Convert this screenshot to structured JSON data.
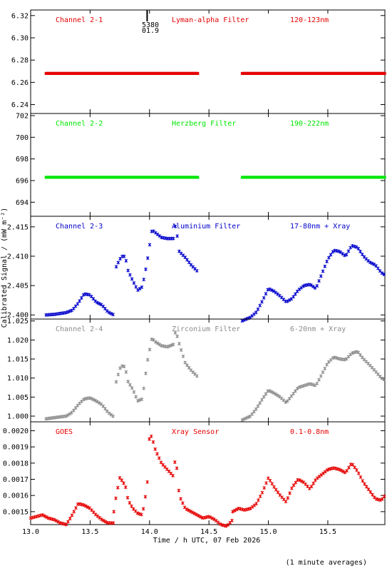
{
  "figure": {
    "ylabel": "Calibrated Signal / (mW m⁻²)",
    "xlabel": "Time / h UTC, 07 Feb 2026",
    "footnote": "(1 minute averages)",
    "marker": {
      "label_top": "5380",
      "label_bottom": "01.9",
      "x": 13.98
    },
    "x_ticks": [
      "13.0",
      "13.5",
      "14.0",
      "14.5",
      "15.0",
      "15.5"
    ],
    "x_tick_values": [
      13.0,
      13.5,
      14.0,
      14.5,
      15.0,
      15.5
    ],
    "xlim": [
      13.0,
      15.98
    ],
    "axis_color": "#000000"
  },
  "chart_data": [
    {
      "type": "scatter",
      "channel": "Channel 2-1",
      "filter": "Lyman-alpha Filter",
      "band": "120-123nm",
      "color": "#e60000",
      "ylim": [
        6.232,
        6.325
      ],
      "y_ticks": [
        "6.24",
        "6.26",
        "6.28",
        "6.30",
        "6.32"
      ],
      "y_tick_values": [
        6.24,
        6.26,
        6.28,
        6.3,
        6.32
      ],
      "dense": true,
      "segments": [
        {
          "x": [
            13.13,
            14.41
          ],
          "y": [
            6.268,
            6.268
          ]
        },
        {
          "x": [
            14.78,
            15.98
          ],
          "y": [
            6.268,
            6.268
          ]
        }
      ]
    },
    {
      "type": "scatter",
      "channel": "Channel 2-2",
      "filter": "Herzberg Filter",
      "band": "190-222nm",
      "color": "#00e600",
      "ylim": [
        692.7,
        702.2
      ],
      "y_ticks": [
        "694",
        "696",
        "698",
        "700",
        "702"
      ],
      "y_tick_values": [
        694,
        696,
        698,
        700,
        702
      ],
      "dense": true,
      "segments": [
        {
          "x": [
            13.13,
            14.41
          ],
          "y": [
            696.3,
            696.3
          ]
        },
        {
          "x": [
            14.78,
            15.98
          ],
          "y": [
            696.3,
            696.3
          ]
        }
      ]
    },
    {
      "type": "scatter",
      "channel": "Channel 2-3",
      "filter": "Aluminium Filter",
      "band": "17-80nm + Xray",
      "color": "#0000cc",
      "ylim": [
        2.3993,
        2.4168
      ],
      "y_ticks": [
        "2.400",
        "2.405",
        "2.410",
        "2.415"
      ],
      "y_tick_values": [
        2.4,
        2.405,
        2.41,
        2.415
      ],
      "dense": false,
      "segments": [
        {
          "x": [
            13.13,
            13.2,
            13.3,
            13.35,
            13.4,
            13.45,
            13.5,
            13.55,
            13.6,
            13.65,
            13.7
          ],
          "y": [
            2.4,
            2.4001,
            2.4004,
            2.4008,
            2.402,
            2.4036,
            2.4034,
            2.4022,
            2.4017,
            2.4005,
            2.4
          ]
        },
        {
          "x": [
            13.72,
            13.75,
            13.78,
            13.8,
            13.82,
            13.86,
            13.9,
            13.94,
            13.98,
            14.02,
            14.05,
            14.1,
            14.15,
            14.2,
            14.22,
            14.25,
            14.3,
            14.35,
            14.4
          ],
          "y": [
            2.4082,
            2.4095,
            2.4102,
            2.4095,
            2.4075,
            2.4058,
            2.4042,
            2.4048,
            2.409,
            2.4145,
            2.414,
            2.4132,
            2.413,
            2.413,
            2.4155,
            2.4108,
            2.4098,
            2.4085,
            2.4075
          ]
        },
        {
          "x": [
            14.78,
            14.85,
            14.9,
            14.95,
            15.0,
            15.05,
            15.1,
            15.15,
            15.2,
            15.25,
            15.3,
            15.35,
            15.4,
            15.45,
            15.5,
            15.55,
            15.6,
            15.65,
            15.7,
            15.75,
            15.8,
            15.85,
            15.9,
            15.95,
            15.98
          ],
          "y": [
            2.399,
            2.3996,
            2.4005,
            2.4024,
            2.4045,
            2.404,
            2.4032,
            2.4022,
            2.4028,
            2.4042,
            2.405,
            2.4052,
            2.4045,
            2.407,
            2.4095,
            2.411,
            2.4108,
            2.41,
            2.4118,
            2.4115,
            2.41,
            2.409,
            2.4085,
            2.4072,
            2.4068
          ]
        }
      ]
    },
    {
      "type": "scatter",
      "channel": "Channel 2-4",
      "filter": "Zirconium Filter",
      "band": "6-20nm + Xray",
      "color": "#8c8c8c",
      "ylim": [
        0.9985,
        1.0255
      ],
      "y_ticks": [
        "1.000",
        "1.005",
        "1.010",
        "1.015",
        "1.020",
        "1.025"
      ],
      "y_tick_values": [
        1.0,
        1.005,
        1.01,
        1.015,
        1.02,
        1.025
      ],
      "dense": false,
      "segments": [
        {
          "x": [
            13.13,
            13.2,
            13.3,
            13.35,
            13.4,
            13.45,
            13.5,
            13.55,
            13.6,
            13.65,
            13.7
          ],
          "y": [
            0.9993,
            0.9996,
            1.0,
            1.001,
            1.003,
            1.0045,
            1.0048,
            1.004,
            1.003,
            1.001,
            0.9998
          ]
        },
        {
          "x": [
            13.72,
            13.75,
            13.78,
            13.8,
            13.82,
            13.86,
            13.9,
            13.94,
            13.98,
            14.02,
            14.05,
            14.1,
            14.15,
            14.2,
            14.22,
            14.25,
            14.3,
            14.35,
            14.4
          ],
          "y": [
            1.009,
            1.0125,
            1.0135,
            1.012,
            1.009,
            1.007,
            1.004,
            1.0045,
            1.014,
            1.0205,
            1.0195,
            1.0185,
            1.0182,
            1.0188,
            1.0225,
            1.019,
            1.014,
            1.012,
            1.0105
          ]
        },
        {
          "x": [
            14.78,
            14.85,
            14.9,
            14.95,
            15.0,
            15.05,
            15.1,
            15.15,
            15.2,
            15.25,
            15.3,
            15.35,
            15.4,
            15.45,
            15.5,
            15.55,
            15.6,
            15.65,
            15.7,
            15.75,
            15.8,
            15.85,
            15.9,
            15.95,
            15.98
          ],
          "y": [
            0.999,
            1.0,
            1.002,
            1.0045,
            1.0068,
            1.006,
            1.005,
            1.0035,
            1.0055,
            1.0075,
            1.008,
            1.0085,
            1.008,
            1.011,
            1.014,
            1.0155,
            1.015,
            1.0148,
            1.0165,
            1.017,
            1.015,
            1.0135,
            1.0118,
            1.01,
            1.0095
          ]
        }
      ]
    },
    {
      "type": "scatter",
      "channel": "GOES",
      "filter": "Xray Sensor",
      "band": "0.1-0.8nm",
      "color": "#e60000",
      "ylim": [
        0.00142,
        0.002055
      ],
      "y_ticks": [
        "0.0015",
        "0.0016",
        "0.0017",
        "0.0018",
        "0.0019",
        "0.0020"
      ],
      "y_tick_values": [
        0.0015,
        0.0016,
        0.0017,
        0.0018,
        0.0019,
        0.002
      ],
      "dense": false,
      "segments": [
        {
          "x": [
            13.0,
            13.05,
            13.1,
            13.15,
            13.2,
            13.25,
            13.3,
            13.35,
            13.4,
            13.45,
            13.5,
            13.55,
            13.6,
            13.65,
            13.7
          ],
          "y": [
            0.00146,
            0.00147,
            0.00148,
            0.00146,
            0.00145,
            0.00143,
            0.00142,
            0.00148,
            0.00155,
            0.00154,
            0.00152,
            0.00148,
            0.00145,
            0.00143,
            0.00143
          ]
        },
        {
          "x": [
            13.7,
            13.72,
            13.75,
            13.78,
            13.8,
            13.82,
            13.86,
            13.9,
            13.94,
            13.98,
            14.0,
            14.02,
            14.05,
            14.1,
            14.15,
            14.2,
            14.22,
            14.25,
            14.3,
            14.35,
            14.4,
            14.45,
            14.5,
            14.55,
            14.6,
            14.65,
            14.7
          ],
          "y": [
            0.0015,
            0.0016,
            0.00171,
            0.00168,
            0.00165,
            0.00157,
            0.00152,
            0.00149,
            0.00148,
            0.00166,
            0.00198,
            0.00196,
            0.00188,
            0.0018,
            0.00176,
            0.00172,
            0.00185,
            0.0016,
            0.00152,
            0.0015,
            0.00148,
            0.00146,
            0.00147,
            0.00145,
            0.00142,
            0.00141,
            0.00145
          ]
        },
        {
          "x": [
            14.7,
            14.75,
            14.8,
            14.85,
            14.9,
            14.95,
            15.0,
            15.05,
            15.1,
            15.15,
            15.2,
            15.25,
            15.3,
            15.35,
            15.4,
            15.45,
            15.5,
            15.55,
            15.6,
            15.65,
            15.7,
            15.75,
            15.8,
            15.85,
            15.9,
            15.95,
            15.98
          ],
          "y": [
            0.0015,
            0.00152,
            0.00151,
            0.00152,
            0.00155,
            0.00162,
            0.00171,
            0.00165,
            0.0016,
            0.00156,
            0.00165,
            0.0017,
            0.00168,
            0.00164,
            0.0017,
            0.00173,
            0.00176,
            0.00177,
            0.00176,
            0.00174,
            0.0018,
            0.00175,
            0.00168,
            0.00163,
            0.00158,
            0.00157,
            0.0016
          ]
        }
      ]
    }
  ]
}
